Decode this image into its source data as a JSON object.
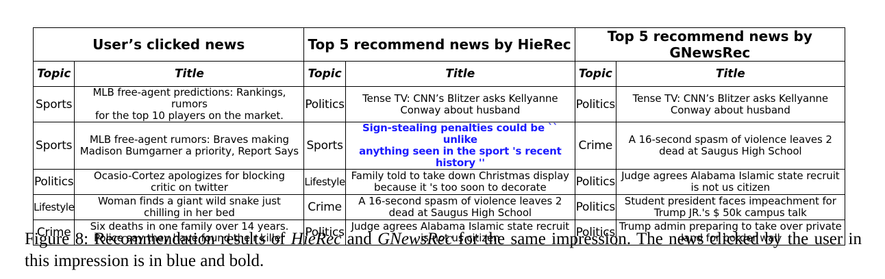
{
  "table": {
    "group_headers": [
      "User’s clicked news",
      "Top 5 recommend news by HieRec",
      "Top 5 recommend news by GNewsRec"
    ],
    "sub_headers": [
      "Topic",
      "Title",
      "Topic",
      "Title",
      "Topic",
      "Title"
    ],
    "rows": [
      {
        "user_topic": "Sports",
        "user_title": "MLB free-agent predictions: Rankings, rumors\nfor the top 10 players on the market.",
        "hierec_topic": "Politics",
        "hierec_title": "Tense TV: CNN’s Blitzer asks Kellyanne\nConway about husband",
        "gnewsrec_topic": "Politics",
        "gnewsrec_title": "Tense TV: CNN’s Blitzer asks Kellyanne\nConway about husband"
      },
      {
        "user_topic": "Sports",
        "user_title": "MLB free-agent rumors: Braves making\nMadison Bumgarner a priority, Report Says",
        "hierec_topic": "Sports",
        "hierec_title": "Sign-stealing penalties could be `` unlike\nanything seen in the sport 's recent history ''",
        "gnewsrec_topic": "Crime",
        "gnewsrec_title": "A 16-second spasm of violence leaves 2\ndead at Saugus High School"
      },
      {
        "user_topic": "Politics",
        "user_title": "Ocasio-Cortez apologizes for blocking\ncritic on twitter",
        "hierec_topic": "Lifestyle",
        "hierec_title": "Family told to take down Christmas display\nbecause it 's too soon to decorate",
        "gnewsrec_topic": "Politics",
        "gnewsrec_title": "Judge agrees Alabama Islamic state recruit\nis not us citizen"
      },
      {
        "user_topic": "Lifestyle",
        "user_title": "Woman finds a giant wild snake just\nchilling in her bed",
        "hierec_topic": "Crime",
        "hierec_title": "A 16-second spasm of violence leaves 2\ndead at Saugus High School",
        "gnewsrec_topic": "Politics",
        "gnewsrec_title": "Student president faces impeachment for\nTrump JR.'s $ 50k campus talk"
      },
      {
        "user_topic": "Crime",
        "user_title": "Six deaths in one family over 14 years.\nPolice say they have found their killer",
        "hierec_topic": "Politics",
        "hierec_title": "Judge agrees Alabama Islamic state recruit\nis not us citizen",
        "gnewsrec_topic": "Politics",
        "gnewsrec_title": "Trump admin preparing to take over private\nland for border wall"
      }
    ]
  },
  "caption": {
    "part1": "Figure 8: Recommendation results of ",
    "method1": "HieRec",
    "part2": " and ",
    "method2": "GNewsRec",
    "part3": " for the same impression.  The news clicked by the user in this impression is in blue and bold."
  },
  "colors": {
    "clicked_news": "#1a1aff"
  }
}
